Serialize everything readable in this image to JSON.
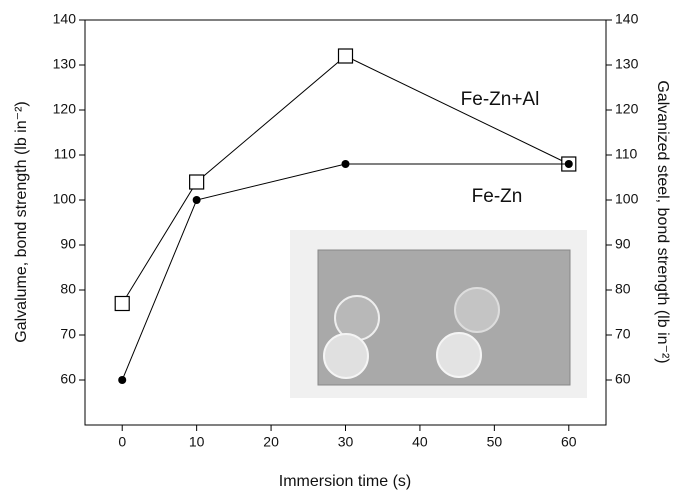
{
  "chart_data": {
    "type": "line",
    "x_label": "Immersion time (s)",
    "y_label": "Galvalume, bond strength (lb in⁻²)",
    "y2_label": "Galvanized steel, bond strength (lb in⁻²)",
    "x": [
      0,
      10,
      30,
      60
    ],
    "series": [
      {
        "name": "Fe-Zn+Al",
        "color": "#000000",
        "marker": "square",
        "values": [
          77,
          104,
          132,
          108
        ]
      },
      {
        "name": "Fe-Zn",
        "color": "#000000",
        "marker": "circle",
        "axis": "y2",
        "values": [
          60,
          100,
          108,
          108
        ]
      }
    ],
    "xlim": [
      -5,
      65
    ],
    "xticks": [
      0,
      10,
      20,
      30,
      40,
      50,
      60
    ],
    "ylim": [
      50,
      140
    ],
    "yticks": [
      60,
      70,
      80,
      90,
      100,
      110,
      120,
      130,
      140
    ],
    "y2lim": [
      50,
      140
    ],
    "y2ticks": [
      60,
      70,
      80,
      90,
      100,
      110,
      120,
      130,
      140
    ]
  }
}
